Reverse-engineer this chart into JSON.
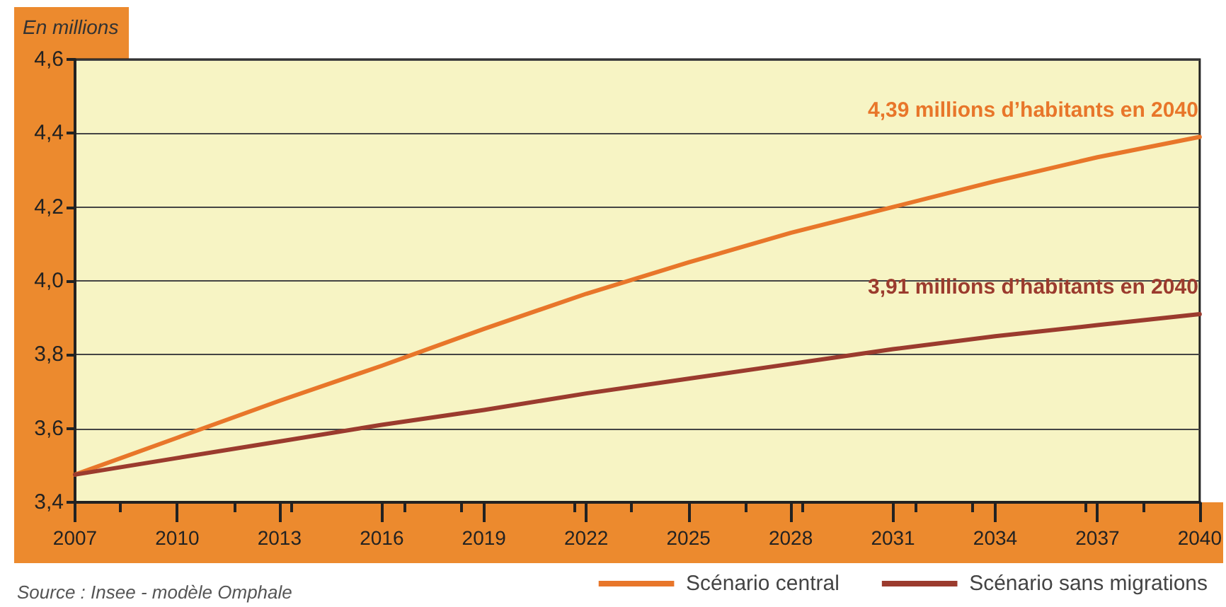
{
  "chart_data": {
    "type": "line",
    "ylabel": "En millions",
    "x": [
      2007,
      2010,
      2013,
      2016,
      2019,
      2022,
      2025,
      2028,
      2031,
      2034,
      2037,
      2040
    ],
    "series": [
      {
        "name": "Scénario central",
        "color": "#e8762a",
        "values": [
          3.475,
          3.575,
          3.675,
          3.77,
          3.87,
          3.965,
          4.05,
          4.13,
          4.2,
          4.27,
          4.335,
          4.39
        ]
      },
      {
        "name": "Scénario sans migrations",
        "color": "#9b3b2e",
        "values": [
          3.475,
          3.52,
          3.565,
          3.61,
          3.65,
          3.695,
          3.735,
          3.775,
          3.815,
          3.85,
          3.88,
          3.91
        ]
      }
    ],
    "xlim": [
      2007,
      2040
    ],
    "xticks": [
      2007,
      2010,
      2013,
      2016,
      2019,
      2022,
      2025,
      2028,
      2031,
      2034,
      2037,
      2040
    ],
    "ylim": [
      3.4,
      4.6
    ],
    "yticks": [
      {
        "value": 3.4,
        "label": "3,4"
      },
      {
        "value": 3.6,
        "label": "3,6"
      },
      {
        "value": 3.8,
        "label": "3,8"
      },
      {
        "value": 4.0,
        "label": "4,0"
      },
      {
        "value": 4.2,
        "label": "4,2"
      },
      {
        "value": 4.4,
        "label": "4,4"
      },
      {
        "value": 4.6,
        "label": "4,6"
      }
    ],
    "annotations": [
      {
        "text": "4,39 millions d’habitants en 2040",
        "x": 2040,
        "y": 4.39
      },
      {
        "text": "3,91 millions d’habitants en 2040",
        "x": 2040,
        "y": 3.91
      },
      "Source : Insee - modèle Omphale"
    ],
    "grid": "y",
    "legend": "bottom right",
    "marker": "none",
    "line_style": "solid"
  }
}
